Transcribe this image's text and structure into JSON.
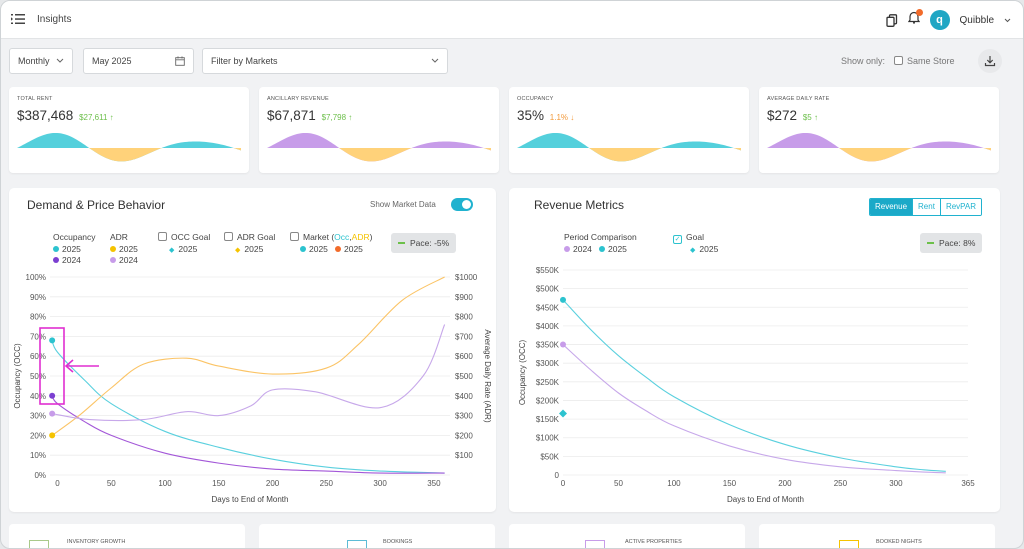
{
  "header": {
    "title": "Insights",
    "brand": "Quibble",
    "avatar_letter": "q"
  },
  "filters": {
    "period": "Monthly",
    "date": "May 2025",
    "markets_placeholder": "Filter by Markets",
    "show_only": "Show only:",
    "same_store": "Same Store"
  },
  "kpis": [
    {
      "label": "TOTAL RENT",
      "value": "$387,468",
      "delta": "$27,611",
      "dir": "up",
      "color": "#6cbf4a",
      "wave": [
        "#54d0dc",
        "#ffd27a"
      ]
    },
    {
      "label": "ANCILLARY REVENUE",
      "value": "$67,871",
      "delta": "$7,798",
      "dir": "up",
      "color": "#6cbf4a",
      "wave": [
        "#c79ce9",
        "#ffd27a"
      ]
    },
    {
      "label": "OCCUPANCY",
      "value": "35%",
      "delta": "1.1%",
      "dir": "down",
      "color": "#f39a3b",
      "wave": [
        "#54d0dc",
        "#ffd27a"
      ]
    },
    {
      "label": "AVERAGE DAILY RATE",
      "value": "$272",
      "delta": "$5",
      "dir": "up",
      "color": "#6cbf4a",
      "wave": [
        "#c79ce9",
        "#ffd27a"
      ]
    }
  ],
  "demand": {
    "title": "Demand & Price Behavior",
    "show_market_data": "Show Market Data",
    "pace": "Pace: -5%",
    "legend": {
      "occupancy": "Occupancy",
      "adr": "ADR",
      "occ_goal": "OCC Goal",
      "adr_goal": "ADR Goal",
      "market": "Market (",
      "occ": "Occ",
      "comma": ",",
      "adr_short": "ADR",
      "close": ")",
      "y2025": "2025",
      "y2024": "2024"
    }
  },
  "revenue": {
    "title": "Revenue Metrics",
    "tabs": [
      "Revenue",
      "Rent",
      "RevPAR"
    ],
    "pace": "Pace: 8%",
    "legend": {
      "period": "Period Comparison",
      "goal": "Goal",
      "y2024": "2024",
      "y2025": "2025"
    }
  },
  "bottom_cards": [
    "INVENTORY GROWTH",
    "BOOKINGS",
    "ACTIVE PROPERTIES",
    "BOOKED NIGHTS"
  ],
  "chart_data": [
    {
      "type": "line",
      "title": "Demand & Price Behavior",
      "xlabel": "Days to End of Month",
      "ylabel": "Occupancy (OCC)",
      "y2label": "Average Daily Rate (ADR)",
      "xlim": [
        -7,
        365
      ],
      "xticks": [
        0,
        50,
        100,
        150,
        200,
        250,
        300,
        350
      ],
      "ylim": [
        0,
        100
      ],
      "yticks": [
        "0%",
        "10%",
        "20%",
        "30%",
        "40%",
        "50%",
        "60%",
        "70%",
        "80%",
        "90%",
        "100%"
      ],
      "y2lim": [
        0,
        1000
      ],
      "y2ticks": [
        "$100",
        "$200",
        "$300",
        "$400",
        "$500",
        "$600",
        "$700",
        "$800",
        "$900",
        "$1000"
      ],
      "series": [
        {
          "name": "Occupancy 2025",
          "color": "#5ad0de",
          "axis": "left",
          "points": [
            [
              -5,
              68
            ],
            [
              0,
              62
            ],
            [
              25,
              48
            ],
            [
              50,
              36
            ],
            [
              100,
              22
            ],
            [
              150,
              14
            ],
            [
              200,
              8
            ],
            [
              250,
              4
            ],
            [
              300,
              2
            ],
            [
              360,
              1
            ]
          ]
        },
        {
          "name": "Occupancy 2024",
          "color": "#a357d8",
          "axis": "left",
          "points": [
            [
              -5,
              40
            ],
            [
              0,
              36
            ],
            [
              25,
              27
            ],
            [
              50,
              20
            ],
            [
              100,
              11
            ],
            [
              150,
              6
            ],
            [
              200,
              3
            ],
            [
              250,
              2
            ],
            [
              300,
              1
            ],
            [
              360,
              1
            ]
          ]
        },
        {
          "name": "ADR 2025",
          "color": "#fbc466",
          "axis": "right",
          "points": [
            [
              -5,
              200
            ],
            [
              20,
              300
            ],
            [
              50,
              440
            ],
            [
              80,
              560
            ],
            [
              120,
              590
            ],
            [
              150,
              550
            ],
            [
              200,
              510
            ],
            [
              250,
              540
            ],
            [
              280,
              660
            ],
            [
              320,
              880
            ],
            [
              360,
              1000
            ]
          ]
        },
        {
          "name": "ADR 2024",
          "color": "#c7a8ea",
          "axis": "right",
          "points": [
            [
              -5,
              310
            ],
            [
              30,
              280
            ],
            [
              80,
              280
            ],
            [
              120,
              320
            ],
            [
              150,
              300
            ],
            [
              180,
              350
            ],
            [
              200,
              430
            ],
            [
              240,
              420
            ],
            [
              300,
              340
            ],
            [
              340,
              500
            ],
            [
              360,
              760
            ]
          ]
        }
      ],
      "markers": [
        {
          "name": "Occupancy 2025",
          "x": -5,
          "y": 68,
          "color": "#2cc3cf"
        },
        {
          "name": "Occupancy 2024",
          "x": -5,
          "y": 40,
          "color": "#7b3fd1"
        },
        {
          "name": "ADR 2025",
          "x": -5,
          "y2": 200,
          "color": "#f5c300"
        },
        {
          "name": "ADR 2024",
          "x": -5,
          "y2": 310,
          "color": "#c79ce9"
        }
      ]
    },
    {
      "type": "line",
      "title": "Revenue Metrics",
      "xlabel": "Days to End of Month",
      "ylabel": "Occupancy (OCC)",
      "xlim": [
        0,
        365
      ],
      "xticks": [
        0,
        50,
        100,
        150,
        200,
        250,
        300,
        365
      ],
      "ylim": [
        0,
        550
      ],
      "yticks": [
        "0",
        "$50K",
        "$100K",
        "$150K",
        "$200K",
        "$250K",
        "$300K",
        "$350K",
        "$400K",
        "$450K",
        "$500K",
        "$550K"
      ],
      "series": [
        {
          "name": "2025",
          "color": "#5ad0de",
          "points": [
            [
              0,
              470
            ],
            [
              25,
              390
            ],
            [
              50,
              320
            ],
            [
              75,
              262
            ],
            [
              100,
              210
            ],
            [
              150,
              135
            ],
            [
              200,
              82
            ],
            [
              250,
              46
            ],
            [
              300,
              22
            ],
            [
              325,
              14
            ],
            [
              345,
              10
            ]
          ]
        },
        {
          "name": "2024",
          "color": "#c7a8ea",
          "points": [
            [
              0,
              350
            ],
            [
              25,
              282
            ],
            [
              50,
              220
            ],
            [
              75,
              172
            ],
            [
              100,
              132
            ],
            [
              150,
              78
            ],
            [
              200,
              42
            ],
            [
              250,
              22
            ],
            [
              300,
              12
            ],
            [
              325,
              8
            ],
            [
              345,
              6
            ]
          ]
        }
      ],
      "markers": [
        {
          "name": "2025",
          "x": 0,
          "y": 470,
          "color": "#2cc3cf",
          "shape": "circle"
        },
        {
          "name": "2024",
          "x": 0,
          "y": 350,
          "color": "#c79ce9",
          "shape": "circle"
        },
        {
          "name": "Goal 2025",
          "x": 0,
          "y": 165,
          "color": "#2cc3cf",
          "shape": "diamond"
        }
      ]
    }
  ]
}
